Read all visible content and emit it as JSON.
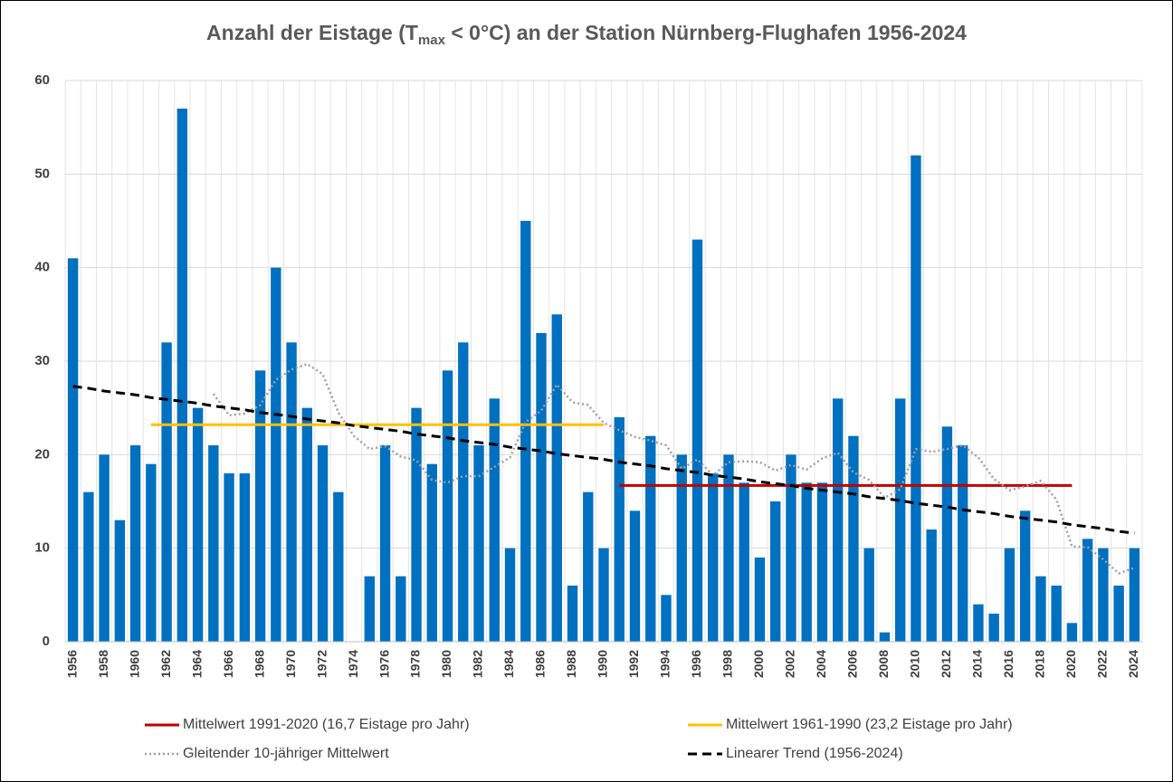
{
  "chart_data": {
    "type": "bar",
    "title_parts": [
      "Anzahl der Eistage (T",
      "max",
      " < 0°C) an der Station Nürnberg-Flughafen 1956-2024"
    ],
    "categories": [
      "1956",
      null,
      "1958",
      null,
      "1960",
      null,
      "1962",
      null,
      "1964",
      null,
      "1966",
      null,
      "1968",
      null,
      "1970",
      null,
      "1972",
      null,
      "1974",
      null,
      "1976",
      null,
      "1978",
      null,
      "1980",
      null,
      "1982",
      null,
      "1984",
      null,
      "1986",
      null,
      "1988",
      null,
      "1990",
      null,
      "1992",
      null,
      "1994",
      null,
      "1996",
      null,
      "1998",
      null,
      "2000",
      null,
      "2002",
      null,
      "2004",
      null,
      "2006",
      null,
      "2008",
      null,
      "2010",
      null,
      "2012",
      null,
      "2014",
      null,
      "2016",
      null,
      "2018",
      null,
      "2020",
      null,
      "2022",
      null,
      "2024"
    ],
    "values": [
      41,
      16,
      20,
      13,
      21,
      19,
      32,
      57,
      25,
      21,
      18,
      18,
      29,
      40,
      32,
      25,
      21,
      16,
      0,
      7,
      21,
      7,
      25,
      19,
      29,
      32,
      21,
      26,
      10,
      45,
      33,
      35,
      6,
      16,
      10,
      24,
      14,
      22,
      5,
      20,
      43,
      18,
      20,
      17,
      9,
      15,
      20,
      17,
      17,
      26,
      22,
      10,
      1,
      26,
      52,
      12,
      23,
      21,
      4,
      3,
      10,
      14,
      7,
      6,
      2,
      11,
      10,
      6,
      10
    ],
    "color": "#0070c0",
    "series": [
      {
        "name": "Mittelwert 1991-2020 (16,7 Eistage pro Jahr)",
        "color": "#c00000",
        "style": "solid",
        "values": [
          null,
          null,
          null,
          null,
          null,
          null,
          null,
          null,
          null,
          null,
          null,
          null,
          null,
          null,
          null,
          null,
          null,
          null,
          null,
          null,
          null,
          null,
          null,
          null,
          null,
          null,
          null,
          null,
          null,
          null,
          null,
          null,
          null,
          null,
          null,
          16.7,
          16.7,
          16.7,
          16.7,
          16.7,
          16.7,
          16.7,
          16.7,
          16.7,
          16.7,
          16.7,
          16.7,
          16.7,
          16.7,
          16.7,
          16.7,
          16.7,
          16.7,
          16.7,
          16.7,
          16.7,
          16.7,
          16.7,
          16.7,
          16.7,
          16.7,
          16.7,
          16.7,
          16.7,
          16.7,
          null,
          null,
          null,
          null
        ]
      },
      {
        "name": "Mittelwert 1961-1990 (23,2 Eistage pro Jahr)",
        "color": "#ffc000",
        "style": "solid",
        "values": [
          null,
          null,
          null,
          null,
          null,
          23.2,
          23.2,
          23.2,
          23.2,
          23.2,
          23.2,
          23.2,
          23.2,
          23.2,
          23.2,
          23.2,
          23.2,
          23.2,
          23.2,
          23.2,
          23.2,
          23.2,
          23.2,
          23.2,
          23.2,
          23.2,
          23.2,
          23.2,
          23.2,
          23.2,
          23.2,
          23.2,
          23.2,
          23.2,
          23.2,
          null,
          null,
          null,
          null,
          null,
          null,
          null,
          null,
          null,
          null,
          null,
          null,
          null,
          null,
          null,
          null,
          null,
          null,
          null,
          null,
          null,
          null,
          null,
          null,
          null,
          null,
          null,
          null,
          null,
          null,
          null,
          null,
          null,
          null
        ]
      },
      {
        "name": "Gleitender 10-jähriger Mittelwert",
        "color": "#a0a0a0",
        "style": "dotted",
        "values": [
          null,
          null,
          null,
          null,
          null,
          null,
          null,
          null,
          null,
          26.5,
          24.2,
          24.4,
          25.3,
          28.0,
          29.1,
          29.7,
          28.6,
          24.5,
          22.0,
          20.6,
          20.9,
          19.8,
          19.4,
          17.3,
          17.0,
          17.7,
          17.7,
          18.7,
          19.7,
          23.5,
          24.7,
          27.5,
          25.6,
          25.3,
          23.4,
          22.6,
          21.9,
          21.5,
          21.0,
          18.5,
          19.5,
          17.8,
          19.2,
          19.3,
          19.2,
          18.3,
          18.9,
          18.4,
          19.6,
          20.2,
          18.1,
          17.3,
          15.4,
          16.3,
          20.6,
          20.3,
          20.6,
          21.0,
          19.7,
          17.4,
          16.2,
          16.6,
          17.2,
          15.2,
          10.2,
          10.1,
          8.8,
          7.3,
          7.9
        ]
      },
      {
        "name": "Linearer Trend (1956-2024)",
        "color": "#000000",
        "style": "dashed",
        "values": [
          27.3,
          27.1,
          26.8,
          26.6,
          26.4,
          26.1,
          25.9,
          25.7,
          25.5,
          25.2,
          25.0,
          24.8,
          24.5,
          24.3,
          24.1,
          23.8,
          23.6,
          23.4,
          23.1,
          22.9,
          22.7,
          22.5,
          22.2,
          22.0,
          21.8,
          21.5,
          21.3,
          21.1,
          20.8,
          20.6,
          20.4,
          20.1,
          19.9,
          19.7,
          19.5,
          19.2,
          19.0,
          18.8,
          18.5,
          18.3,
          18.1,
          17.8,
          17.6,
          17.4,
          17.1,
          16.9,
          16.7,
          16.4,
          16.2,
          16.0,
          15.8,
          15.5,
          15.3,
          15.1,
          14.8,
          14.6,
          14.4,
          14.1,
          13.9,
          13.7,
          13.4,
          13.2,
          13.0,
          12.8,
          12.5,
          12.3,
          12.1,
          11.8,
          11.6
        ]
      }
    ],
    "ylim": [
      0,
      60
    ],
    "yticks": [
      0,
      10,
      20,
      30,
      40,
      50,
      60
    ],
    "grid": true
  }
}
